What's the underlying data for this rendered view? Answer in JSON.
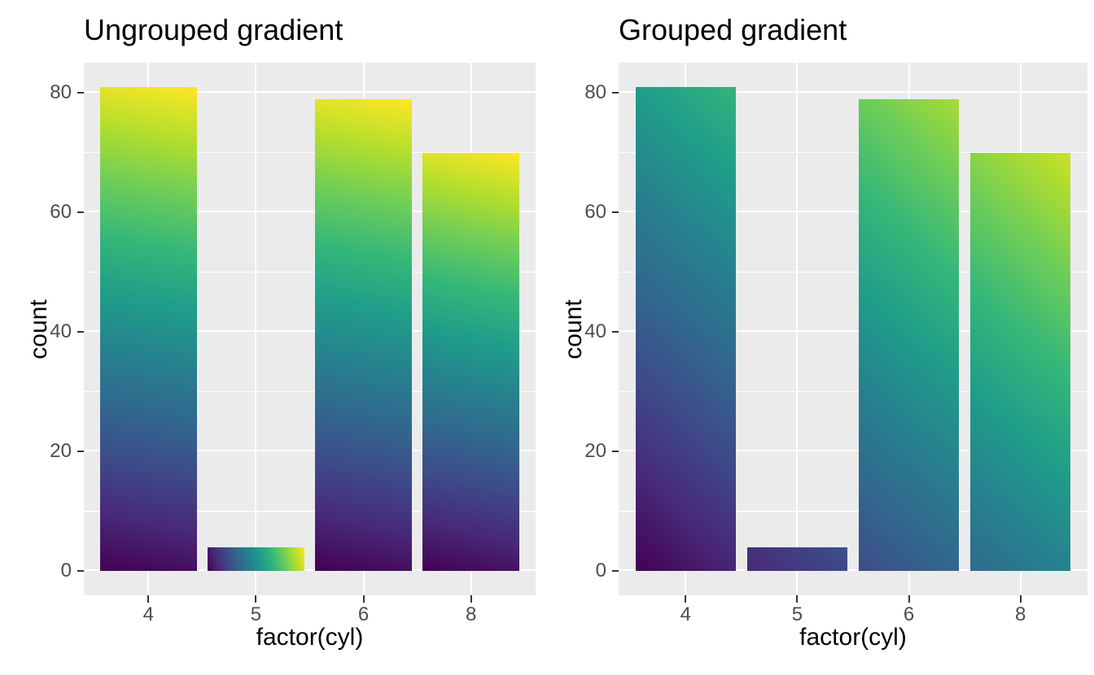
{
  "chart_data": [
    {
      "type": "bar",
      "title": "Ungrouped gradient",
      "xlabel": "factor(cyl)",
      "ylabel": "count",
      "categories": [
        "4",
        "5",
        "6",
        "8"
      ],
      "values": [
        81,
        4,
        79,
        70
      ],
      "ylim": [
        -4,
        85
      ],
      "y_major_ticks": [
        0,
        20,
        40,
        60,
        80
      ],
      "y_minor_gridlines": [
        10,
        30,
        50,
        70
      ],
      "grid": true,
      "legend": "none",
      "fill": "viridis linear gradient, bottom-left to top-right of each individual bar"
    },
    {
      "type": "bar",
      "title": "Grouped gradient",
      "xlabel": "factor(cyl)",
      "ylabel": "count",
      "categories": [
        "4",
        "5",
        "6",
        "8"
      ],
      "values": [
        81,
        4,
        79,
        70
      ],
      "ylim": [
        -4,
        85
      ],
      "y_major_ticks": [
        0,
        20,
        40,
        60,
        80
      ],
      "y_minor_gridlines": [
        10,
        30,
        50,
        70
      ],
      "grid": true,
      "legend": "none",
      "fill": "single viridis linear gradient, bottom-left to top-right of the bounding box of all bars together"
    }
  ],
  "style": {
    "background": "#FFFFFF",
    "panel_background": "#EBEBEB",
    "gridline_color": "#FFFFFF",
    "tick_mark_color": "#333333",
    "tick_label_color": "#4D4D4D",
    "text_color": "#000000",
    "viridis_palette": [
      "#440154",
      "#482878",
      "#3E4A89",
      "#31688E",
      "#26828E",
      "#1F9E89",
      "#35B779",
      "#6DCD59",
      "#B4DE2C",
      "#FDE725"
    ]
  }
}
